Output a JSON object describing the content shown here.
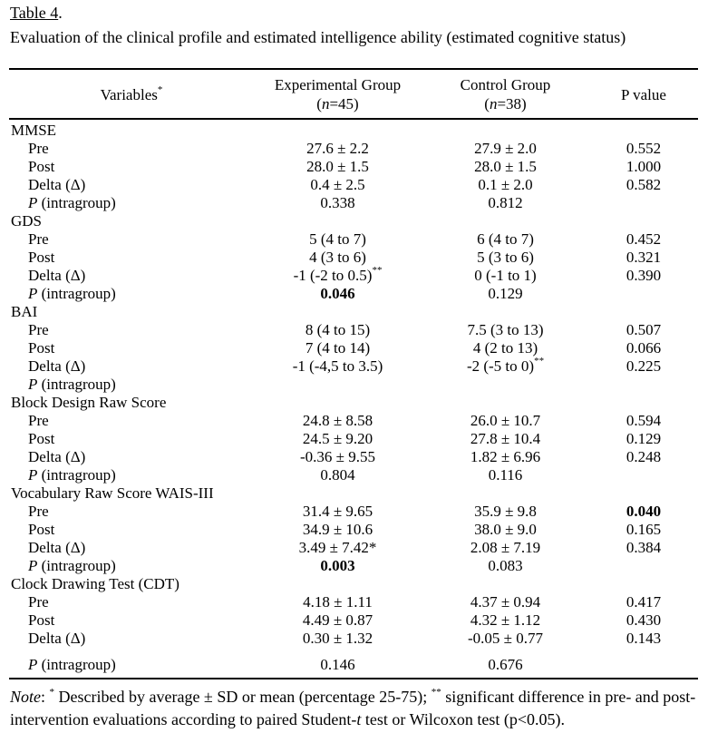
{
  "page": {
    "background": "#ffffff",
    "text_color": "#000000"
  },
  "title": {
    "label": "Table 4",
    "period": ".",
    "caption": "Evaluation of the clinical profile and estimated intelligence ability (estimated cognitive status)"
  },
  "table": {
    "header": {
      "variables": {
        "text": "Variables",
        "sup": "*"
      },
      "experimental": {
        "line1": "Experimental Group",
        "paren_open": "(",
        "n_italic": "n",
        "n_rest": "=45)"
      },
      "control": {
        "line1": "Control Group",
        "paren_open": "(",
        "n_italic": "n",
        "n_rest": "=38)"
      },
      "p_value": "P value"
    },
    "sections": [
      {
        "name": "MMSE",
        "rows": [
          {
            "label": "Pre",
            "cells": [
              {
                "t": "27.6 ± 2.2"
              },
              {
                "t": "27.9 ± 2.0"
              },
              {
                "t": "0.552"
              }
            ]
          },
          {
            "label": "Post",
            "cells": [
              {
                "t": "28.0 ± 1.5"
              },
              {
                "t": "28.0 ± 1.5"
              },
              {
                "t": "1.000"
              }
            ]
          },
          {
            "label": "Delta (Δ)",
            "cells": [
              {
                "t": "0.4 ± 2.5"
              },
              {
                "t": "0.1 ± 2.0"
              },
              {
                "t": "0.582"
              }
            ]
          },
          {
            "label_italic": "P",
            "label": " (intragroup)",
            "cells": [
              {
                "t": "0.338"
              },
              {
                "t": "0.812"
              },
              {
                "t": ""
              }
            ]
          }
        ]
      },
      {
        "name": "GDS",
        "rows": [
          {
            "label": "Pre",
            "cells": [
              {
                "t": "5 (4 to 7)"
              },
              {
                "t": "6 (4 to 7)"
              },
              {
                "t": "0.452"
              }
            ]
          },
          {
            "label": "Post",
            "cells": [
              {
                "t": "4 (3 to 6)"
              },
              {
                "t": "5 (3 to 6)"
              },
              {
                "t": "0.321"
              }
            ]
          },
          {
            "label": "Delta (Δ)",
            "cells": [
              {
                "t": "-1 (-2 to 0.5)",
                "sup": "**"
              },
              {
                "t": "0 (-1 to 1)"
              },
              {
                "t": "0.390"
              }
            ]
          },
          {
            "label_italic": "P",
            "label": " (intragroup)",
            "cells": [
              {
                "t": "0.046",
                "bold": true
              },
              {
                "t": "0.129"
              },
              {
                "t": ""
              }
            ]
          }
        ]
      },
      {
        "name": "BAI",
        "rows": [
          {
            "label": "Pre",
            "cells": [
              {
                "t": "8 (4 to 15)"
              },
              {
                "t": "7.5 (3 to 13)"
              },
              {
                "t": "0.507"
              }
            ]
          },
          {
            "label": "Post",
            "cells": [
              {
                "t": "7 (4 to 14)"
              },
              {
                "t": "4 (2 to 13)"
              },
              {
                "t": "0.066"
              }
            ]
          },
          {
            "label": "Delta (Δ)",
            "cells": [
              {
                "t": "-1 (-4,5 to 3.5)"
              },
              {
                "t": "-2 (-5 to 0)",
                "sup": "**"
              },
              {
                "t": "0.225"
              }
            ]
          },
          {
            "label_italic": "P",
            "label": " (intragroup)",
            "cells": [
              {
                "t": ""
              },
              {
                "t": ""
              },
              {
                "t": ""
              }
            ]
          }
        ]
      },
      {
        "name": "Block Design Raw Score",
        "rows": [
          {
            "label": "Pre",
            "cells": [
              {
                "t": "24.8 ± 8.58"
              },
              {
                "t": "26.0 ± 10.7"
              },
              {
                "t": "0.594"
              }
            ]
          },
          {
            "label": "Post",
            "cells": [
              {
                "t": "24.5 ± 9.20"
              },
              {
                "t": "27.8 ± 10.4"
              },
              {
                "t": "0.129"
              }
            ]
          },
          {
            "label": "Delta (Δ)",
            "cells": [
              {
                "t": "-0.36 ± 9.55"
              },
              {
                "t": "1.82 ± 6.96"
              },
              {
                "t": "0.248"
              }
            ]
          },
          {
            "label_italic": "P",
            "label": " (intragroup)",
            "cells": [
              {
                "t": "0.804"
              },
              {
                "t": "0.116"
              },
              {
                "t": ""
              }
            ]
          }
        ]
      },
      {
        "name": "Vocabulary Raw Score WAIS-III",
        "rows": [
          {
            "label": "Pre",
            "cells": [
              {
                "t": "31.4 ± 9.65"
              },
              {
                "t": "35.9 ± 9.8"
              },
              {
                "t": "0.040",
                "bold": true
              }
            ]
          },
          {
            "label": "Post",
            "cells": [
              {
                "t": "34.9 ± 10.6"
              },
              {
                "t": "38.0 ± 9.0"
              },
              {
                "t": "0.165"
              }
            ]
          },
          {
            "label": "Delta (Δ)",
            "cells": [
              {
                "t": "3.49 ± 7.42*"
              },
              {
                "t": "2.08 ± 7.19"
              },
              {
                "t": "0.384"
              }
            ]
          },
          {
            "label_italic": "P",
            "label": " (intragroup)",
            "cells": [
              {
                "t": "0.003",
                "bold": true
              },
              {
                "t": "0.083"
              },
              {
                "t": ""
              }
            ]
          }
        ]
      },
      {
        "name": "Clock Drawing Test (CDT)",
        "rows": [
          {
            "label": "Pre",
            "cells": [
              {
                "t": "4.18 ± 1.11"
              },
              {
                "t": "4.37 ± 0.94"
              },
              {
                "t": "0.417"
              }
            ]
          },
          {
            "label": "Post",
            "cells": [
              {
                "t": "4.49 ± 0.87"
              },
              {
                "t": "4.32 ± 1.12"
              },
              {
                "t": "0.430"
              }
            ]
          },
          {
            "label": "Delta (Δ)",
            "cells": [
              {
                "t": "0.30 ± 1.32"
              },
              {
                "t": "-0.05 ± 0.77"
              },
              {
                "t": "0.143"
              }
            ]
          },
          {
            "label_italic": "P",
            "label": " (intragroup)",
            "cells": [
              {
                "t": "0.146"
              },
              {
                "t": "0.676"
              },
              {
                "t": ""
              }
            ]
          }
        ]
      }
    ]
  },
  "note": {
    "segments": [
      {
        "text": "Note",
        "style": "italic"
      },
      {
        "text": ": ",
        "style": "normal"
      },
      {
        "text": "*",
        "style": "sup"
      },
      {
        "text": " Described by average ± SD or mean (percentage 25-75); ",
        "style": "normal"
      },
      {
        "text": "**",
        "style": "sup"
      },
      {
        "text": " significant difference in pre- and post-intervention evaluations according to paired Student-",
        "style": "normal"
      },
      {
        "text": "t",
        "style": "italic"
      },
      {
        "text": " test or Wilcoxon test (p<0.05).",
        "style": "normal"
      }
    ]
  }
}
